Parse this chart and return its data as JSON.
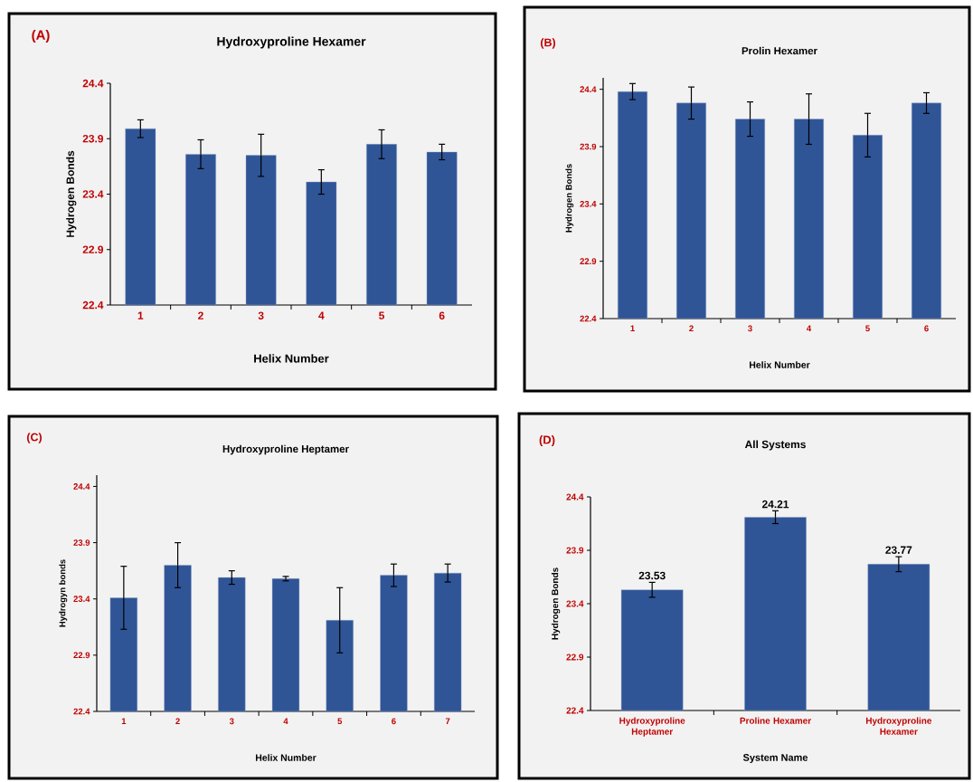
{
  "chart_data": [
    {
      "type": "bar",
      "title": "Hydroxyproline Hexamer",
      "xlabel": "Helix Number",
      "ylabel": "Hydrogen Bonds",
      "annotations": [
        "(A)"
      ],
      "categories": [
        "1",
        "2",
        "3",
        "4",
        "5",
        "6"
      ],
      "values": [
        23.99,
        23.76,
        23.75,
        23.51,
        23.85,
        23.78
      ],
      "errors": [
        0.08,
        0.13,
        0.19,
        0.11,
        0.13,
        0.07
      ],
      "color": "#2f5597",
      "ylim": [
        22.4,
        24.4
      ],
      "yticks": [
        22.4,
        22.9,
        23.4,
        23.9,
        24.4
      ]
    },
    {
      "type": "bar",
      "title": "Prolin Hexamer",
      "xlabel": "Helix Number",
      "ylabel": "Hydrogen Bonds",
      "annotations": [
        "(B)"
      ],
      "categories": [
        "1",
        "2",
        "3",
        "4",
        "5",
        "6"
      ],
      "values": [
        24.38,
        24.28,
        24.14,
        24.14,
        24.0,
        24.28
      ],
      "errors": [
        0.07,
        0.14,
        0.15,
        0.22,
        0.19,
        0.09
      ],
      "color": "#2f5597",
      "ylim": [
        22.4,
        24.5
      ],
      "yticks": [
        22.4,
        22.9,
        23.4,
        23.9,
        24.4
      ]
    },
    {
      "type": "bar",
      "title": "Hydroxyproline Heptamer",
      "xlabel": "Helix Number",
      "ylabel": "Hydrogyn bonds",
      "annotations": [
        "(C)"
      ],
      "categories": [
        "1",
        "2",
        "3",
        "4",
        "5",
        "6",
        "7"
      ],
      "values": [
        23.41,
        23.7,
        23.59,
        23.58,
        23.21,
        23.61,
        23.63
      ],
      "errors": [
        0.28,
        0.2,
        0.06,
        0.02,
        0.29,
        0.1,
        0.08
      ],
      "color": "#2f5597",
      "ylim": [
        22.4,
        24.5
      ],
      "yticks": [
        22.4,
        22.9,
        23.4,
        23.9,
        24.4
      ]
    },
    {
      "type": "bar",
      "title": "All Systems",
      "xlabel": "System Name",
      "ylabel": "Hydrogen Bonds",
      "annotations": [
        "(D)"
      ],
      "categories": [
        "Hydroxyproline Heptamer",
        "Proline Hexamer",
        "Hydroxyproline Hexamer"
      ],
      "values": [
        23.53,
        24.21,
        23.77
      ],
      "errors": [
        0.07,
        0.06,
        0.07
      ],
      "data_labels": true,
      "color": "#2f5597",
      "ylim": [
        22.4,
        24.4
      ],
      "yticks": [
        22.4,
        22.9,
        23.4,
        23.9,
        24.4
      ]
    }
  ]
}
